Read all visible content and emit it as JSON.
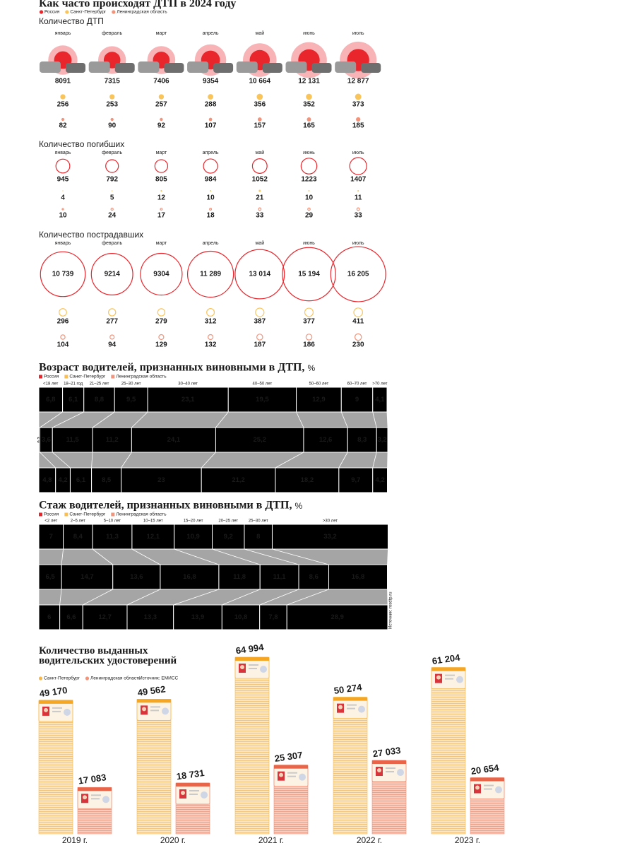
{
  "chart_data": [
    {
      "type": "bubble",
      "title": "Как часто происходят ДТП в 2024 году",
      "subtitle": "Количество ДТП",
      "categories": [
        "январь",
        "февраль",
        "март",
        "апрель",
        "май",
        "июнь",
        "июль"
      ],
      "series": [
        {
          "name": "Россия",
          "color": "#e8262c",
          "values": [
            8091,
            7315,
            7406,
            9354,
            10664,
            12131,
            12877
          ],
          "value_labels": [
            "8091",
            "7315",
            "7406",
            "9354",
            "10 664",
            "12 131",
            "12 877"
          ]
        },
        {
          "name": "Санкт-Петербург",
          "color": "#f9c55a",
          "values": [
            256,
            253,
            257,
            288,
            356,
            352,
            373
          ]
        },
        {
          "name": "Ленинградская область",
          "color": "#f3937a",
          "values": [
            82,
            90,
            92,
            107,
            157,
            165,
            185
          ]
        }
      ]
    },
    {
      "type": "bubble",
      "subtitle": "Количество погибших",
      "categories": [
        "январь",
        "февраль",
        "март",
        "апрель",
        "май",
        "июнь",
        "июль"
      ],
      "series": [
        {
          "color": "#e8262c",
          "values": [
            945,
            792,
            805,
            984,
            1052,
            1223,
            1407
          ]
        },
        {
          "color": "#f9c55a",
          "values": [
            4,
            5,
            12,
            10,
            21,
            10,
            11
          ]
        },
        {
          "color": "#f3937a",
          "values": [
            10,
            24,
            17,
            18,
            33,
            29,
            33
          ]
        }
      ]
    },
    {
      "type": "bubble",
      "subtitle": "Количество пострадавших",
      "categories": [
        "январь",
        "февраль",
        "март",
        "апрель",
        "май",
        "июнь",
        "июль"
      ],
      "series": [
        {
          "color": "#e8262c",
          "values": [
            10739,
            9214,
            9304,
            11289,
            13014,
            15194,
            16205
          ],
          "value_labels": [
            "10 739",
            "9214",
            "9304",
            "11 289",
            "13 014",
            "15 194",
            "16 205"
          ]
        },
        {
          "color": "#f9c55a",
          "values": [
            296,
            277,
            279,
            312,
            387,
            377,
            411
          ]
        },
        {
          "color": "#f3937a",
          "values": [
            104,
            94,
            129,
            132,
            187,
            186,
            230
          ]
        }
      ]
    },
    {
      "type": "stacked_bar",
      "title": "Возраст водителей, признанных виновными в ДТП,",
      "unit": "%",
      "categories": [
        "<18 лет",
        "18–21 год",
        "21–25 лет",
        "25–30 лет",
        "30–40 лет",
        "40–50 лет",
        "50–60 лет",
        "60–70 лет",
        ">70 лет"
      ],
      "series": [
        {
          "name": "Россия",
          "color": "#e8262c",
          "values": [
            6.8,
            6.1,
            8.8,
            9.5,
            23.1,
            19.5,
            12.9,
            9,
            4.1
          ],
          "value_labels": [
            "6,8",
            "6,1",
            "8,8",
            "9,5",
            "23,1",
            "19,5",
            "12,9",
            "9",
            "4,1"
          ]
        },
        {
          "name": "Санкт-Петербург",
          "color": "#fbbf4f",
          "values": [
            0.3,
            3.6,
            11.5,
            11.2,
            24.1,
            25.2,
            12.6,
            8.3,
            3.2
          ],
          "value_labels": [
            "0,3",
            "3,6",
            "11,5",
            "11,2",
            "24,1",
            "25,2",
            "12,6",
            "8,3",
            "3,2"
          ]
        },
        {
          "name": "Ленинградская область",
          "color": "#f2957e",
          "values": [
            4.8,
            4.2,
            6.1,
            8.5,
            23,
            21.2,
            18.2,
            9.7,
            4.2
          ],
          "value_labels": [
            "4,8",
            "4,2",
            "6,1",
            "8,5",
            "23",
            "21,2",
            "18,2",
            "9,7",
            "4,2"
          ]
        }
      ]
    },
    {
      "type": "stacked_bar",
      "title": "Стаж водителей, признанных виновными в ДТП,",
      "unit": "%",
      "source": "Источник: rosdtp.ru",
      "categories": [
        "<2 лет",
        "2–5 лет",
        "5–10 лет",
        "10–15 лет",
        "15–20 лет",
        "20–25 лет",
        "25–30 лет",
        ">30 лет"
      ],
      "series": [
        {
          "name": "Россия",
          "color": "#e8262c",
          "values": [
            7,
            8.4,
            11.3,
            12.1,
            10.9,
            9.2,
            8,
            33.2
          ],
          "value_labels": [
            "7",
            "8,4",
            "11,3",
            "12,1",
            "10,9",
            "9,2",
            "8",
            "33,2"
          ]
        },
        {
          "name": "Санкт-Петербург",
          "color": "#fbbf4f",
          "values": [
            6.5,
            14.7,
            13.6,
            16.8,
            11.8,
            11.1,
            8.6,
            16.8
          ],
          "value_labels": [
            "6,5",
            "14,7",
            "13,6",
            "16,8",
            "11,8",
            "11,1",
            "8,6",
            "16,8"
          ]
        },
        {
          "name": "Ленинградская область",
          "color": "#f2957e",
          "values": [
            6,
            6.6,
            12.7,
            13.3,
            13.9,
            10.8,
            7.8,
            28.9
          ],
          "value_labels": [
            "6",
            "6,6",
            "12,7",
            "13,3",
            "13,9",
            "10,8",
            "7,8",
            "28,9"
          ]
        }
      ]
    },
    {
      "type": "pictogram_stack",
      "title": "Количество выданных водительских удостоверений",
      "source": "Источник: ЕМИСС",
      "categories": [
        "2019 г.",
        "2020 г.",
        "2021 г.",
        "2022 г.",
        "2023 г."
      ],
      "series": [
        {
          "name": "Санкт-Петербург",
          "color": "#f7b84b",
          "values": [
            49170,
            49562,
            64994,
            50274,
            61204
          ],
          "value_labels": [
            "49 170",
            "49 562",
            "64 994",
            "50 274",
            "61 204"
          ]
        },
        {
          "name": "Ленинградская область",
          "color": "#f3937a",
          "values": [
            17083,
            18731,
            25307,
            27033,
            20654
          ],
          "value_labels": [
            "17 083",
            "18 731",
            "25 307",
            "27 033",
            "20 654"
          ]
        }
      ]
    }
  ]
}
